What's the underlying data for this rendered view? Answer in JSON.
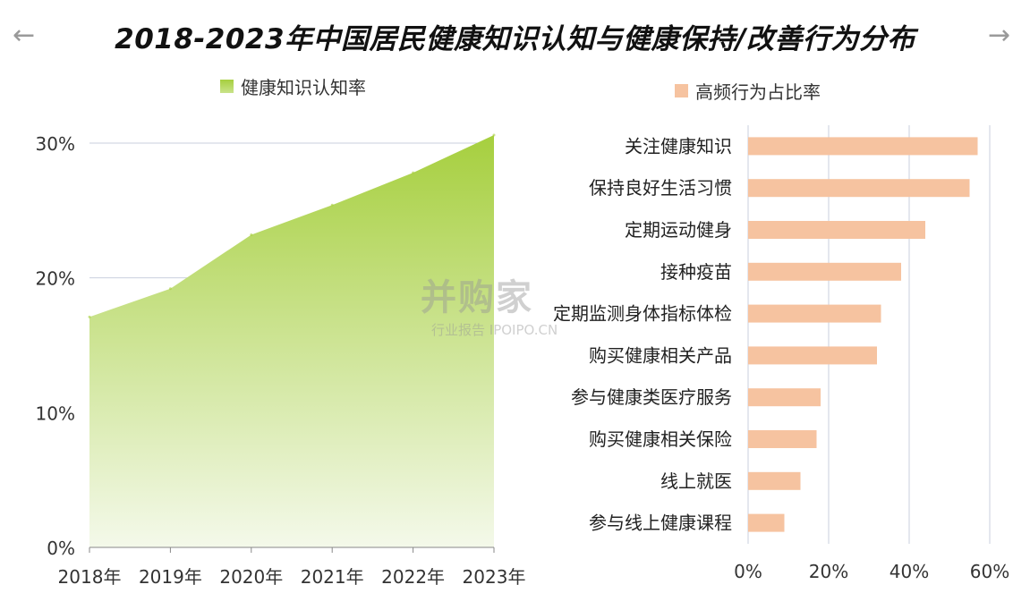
{
  "title": "2018-2023年中国居民健康知识认知与健康保持/改善行为分布",
  "nav": {
    "prev_arrow": "←",
    "next_arrow": "→"
  },
  "watermark": {
    "brand": "并购家",
    "subtitle": "行业报告 IPOIPO.CN"
  },
  "colors": {
    "area_top": "#a6cf3e",
    "area_bottom": "#f4f9ea",
    "bar": "#f6c3a0",
    "grid": "#c9cfde"
  },
  "chart_data": [
    {
      "type": "area",
      "legend": "健康知识认知率",
      "legend_position": "top",
      "x": [
        "2018年",
        "2019年",
        "2020年",
        "2021年",
        "2022年",
        "2023年"
      ],
      "values": [
        17.1,
        19.2,
        23.2,
        25.4,
        27.8,
        30.6
      ],
      "ylim": [
        0,
        30
      ],
      "yticks": [
        "0%",
        "10%",
        "20%",
        "30%"
      ],
      "ytick_values": [
        0,
        10,
        20,
        30
      ],
      "grid": true
    },
    {
      "type": "bar",
      "orientation": "horizontal",
      "legend": "高频行为占比率",
      "legend_position": "top",
      "categories": [
        "关注健康知识",
        "保持良好生活习惯",
        "定期运动健身",
        "接种疫苗",
        "定期监测身体指标体检",
        "购买健康相关产品",
        "参与健康类医疗服务",
        "购买健康相关保险",
        "线上就医",
        "参与线上健康课程"
      ],
      "values": [
        57,
        55,
        44,
        38,
        33,
        32,
        18,
        17,
        13,
        9
      ],
      "xlim": [
        0,
        60
      ],
      "xticks": [
        "0%",
        "20%",
        "40%",
        "60%"
      ],
      "xtick_values": [
        0,
        20,
        40,
        60
      ],
      "grid": true
    }
  ]
}
